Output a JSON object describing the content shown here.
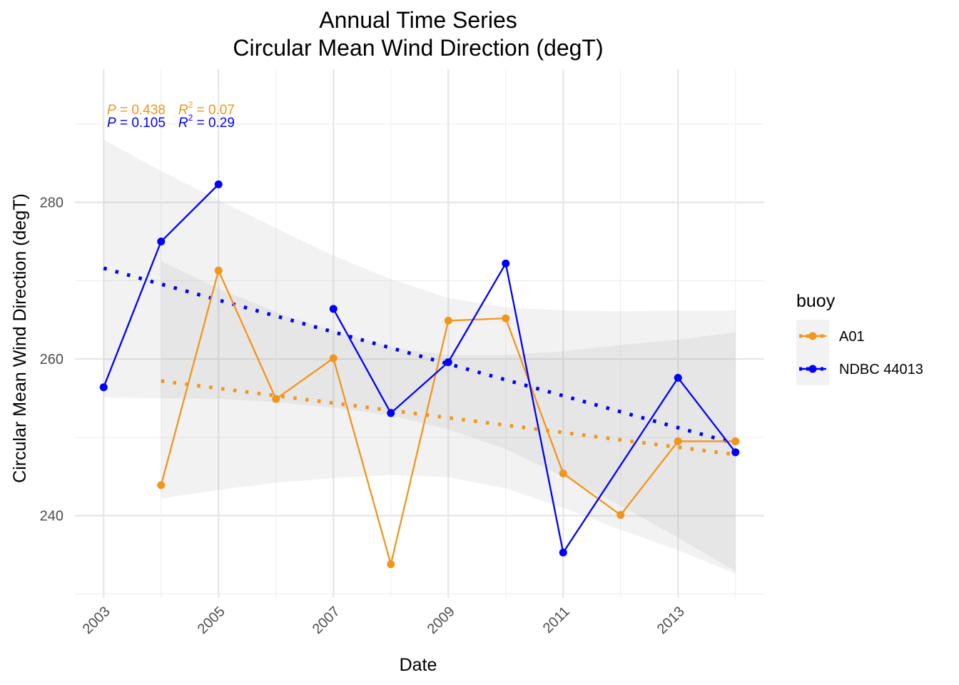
{
  "chart_data": {
    "type": "line",
    "title": "Annual Time Series",
    "subtitle": "Circular Mean Wind Direction (degT)",
    "xlabel": "Date",
    "ylabel": "Circular Mean Wind Direction (degT)",
    "xlim": [
      2002.5,
      2014.5
    ],
    "ylim": [
      229.5,
      297
    ],
    "x_ticks": [
      "2003",
      "2005",
      "2007",
      "2009",
      "2011",
      "2013"
    ],
    "y_ticks": [
      "240",
      "260",
      "280"
    ],
    "grid": true,
    "legend": {
      "title": "buoy",
      "position": "right",
      "entries": [
        "A01",
        "NDBC 44013"
      ]
    },
    "series": [
      {
        "name": "A01",
        "color": "#F39519",
        "x": [
          2004,
          2005,
          2006,
          2007,
          2008,
          2009,
          2010,
          2011,
          2012,
          2013,
          2014
        ],
        "values": [
          243.9,
          271.3,
          254.9,
          260.1,
          233.8,
          264.9,
          265.2,
          245.4,
          240.1,
          249.5,
          249.5
        ],
        "trend": {
          "x": [
            2004,
            2014
          ],
          "y": [
            257.2,
            247.8
          ]
        },
        "band_outer": [
          [
            2004,
            272.5,
            242.2
          ],
          [
            2005,
            269.0,
            243.3
          ],
          [
            2006,
            266.0,
            244.2
          ],
          [
            2007,
            263.5,
            244.8
          ],
          [
            2008,
            261.5,
            245.2
          ],
          [
            2009,
            260.5,
            244.9
          ],
          [
            2010,
            260.5,
            243.5
          ],
          [
            2011,
            261.0,
            241.0
          ],
          [
            2012,
            261.8,
            238.2
          ],
          [
            2013,
            262.5,
            235.6
          ],
          [
            2014,
            263.4,
            232.6
          ]
        ],
        "stats": {
          "p_label": "P",
          "p_value": " = 0.438",
          "r2_label": "R",
          "r2_sup": "2",
          "r2_value": " = 0.07"
        }
      },
      {
        "name": "NDBC 44013",
        "color": "#0000FF",
        "x": [
          2003,
          2004,
          2005,
          2007,
          2008,
          2009,
          2010,
          2011,
          2013,
          2014
        ],
        "values": [
          256.4,
          275.0,
          282.3,
          266.4,
          253.1,
          259.6,
          272.2,
          235.3,
          257.6,
          248.1
        ],
        "gaps_after": [
          2005
        ],
        "trend": {
          "x": [
            2003,
            2014
          ],
          "y": [
            271.6,
            249.2
          ]
        },
        "band_outer": [
          [
            2003,
            288.0,
            255.1
          ],
          [
            2004,
            284.0,
            255.0
          ],
          [
            2005,
            280.3,
            254.9
          ],
          [
            2006,
            276.7,
            254.5
          ],
          [
            2007,
            273.2,
            253.8
          ],
          [
            2008,
            270.2,
            252.8
          ],
          [
            2009,
            267.8,
            251.0
          ],
          [
            2010,
            266.6,
            248.5
          ],
          [
            2011,
            266.2,
            245.0
          ],
          [
            2012,
            266.1,
            241.3
          ],
          [
            2013,
            266.2,
            237.2
          ],
          [
            2014,
            266.2,
            232.9
          ]
        ],
        "stats": {
          "p_label": "P",
          "p_value": " = 0.105",
          "r2_label": "R",
          "r2_sup": "2",
          "r2_value": " = 0.29"
        }
      }
    ]
  }
}
